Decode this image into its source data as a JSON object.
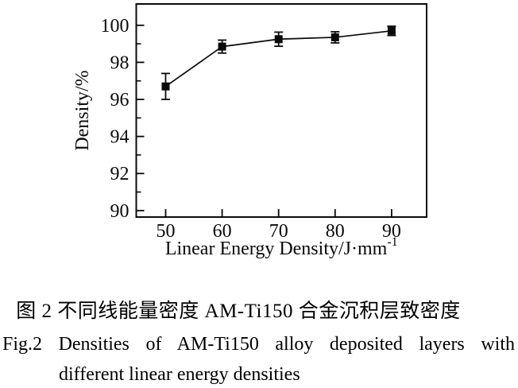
{
  "figure": {
    "caption_zh": "图 2 不同线能量密度 AM-Ti150 合金沉积层致密度",
    "caption_en_line1": "Fig.2 Densities of AM-Ti150 alloy deposited layers with",
    "caption_en_line2": "different linear energy densities"
  },
  "chart_data": {
    "type": "line",
    "title": "",
    "x": [
      50,
      60,
      70,
      80,
      90
    ],
    "y": [
      96.7,
      98.85,
      99.25,
      99.35,
      99.7
    ],
    "yerr": [
      0.7,
      0.35,
      0.38,
      0.3,
      0.25
    ],
    "xlabel": "Linear Energy Density/J·mm⁻¹",
    "xlabel_main": "Linear Energy Density/J·mm",
    "xlabel_superscript": "-1",
    "ylabel": "Density/%",
    "xticks": [
      50,
      60,
      70,
      80,
      90
    ],
    "yticks": [
      90,
      92,
      94,
      96,
      98,
      100
    ],
    "yminor_ticks": [
      91,
      93,
      95,
      97,
      99
    ],
    "xlim": [
      44.8,
      96.2
    ],
    "ylim": [
      89.65,
      101.15
    ],
    "grid": false,
    "legend": null,
    "marker": "filled-square",
    "ink_color": "#0a0a0a",
    "background_color": "#ffffff"
  }
}
